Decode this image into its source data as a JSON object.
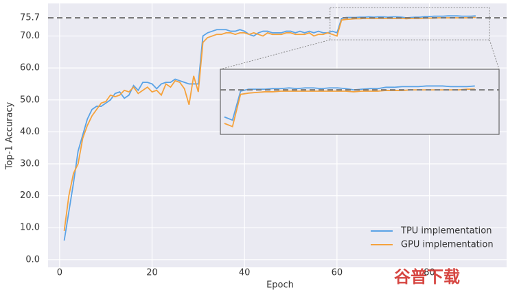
{
  "chart_data": {
    "type": "line",
    "x_label": "Epoch",
    "y_label": "Top-1 Accuracy",
    "x": [
      1,
      2,
      3,
      4,
      5,
      6,
      7,
      8,
      9,
      10,
      11,
      12,
      13,
      14,
      15,
      16,
      17,
      18,
      19,
      20,
      21,
      22,
      23,
      24,
      25,
      26,
      27,
      28,
      29,
      30,
      31,
      32,
      33,
      34,
      35,
      36,
      37,
      38,
      39,
      40,
      41,
      42,
      43,
      44,
      45,
      46,
      47,
      48,
      49,
      50,
      51,
      52,
      53,
      54,
      55,
      56,
      57,
      58,
      59,
      60,
      61,
      62,
      63,
      64,
      65,
      66,
      67,
      68,
      69,
      70,
      71,
      72,
      73,
      74,
      75,
      76,
      77,
      78,
      79,
      80,
      81,
      82,
      83,
      84,
      85,
      86,
      87,
      88,
      89,
      90
    ],
    "series": [
      {
        "name": "TPU implementation",
        "color": "#5aa3e6",
        "values": [
          6,
          15,
          24,
          34,
          39,
          44,
          47,
          48,
          48,
          49,
          50,
          52,
          52.5,
          50.5,
          51.5,
          54.5,
          53,
          55.5,
          55.5,
          55,
          53.5,
          55,
          55.5,
          55.5,
          56.5,
          56,
          55.5,
          55,
          55,
          55,
          70,
          71,
          71.5,
          72,
          72,
          72,
          71.5,
          71.5,
          72,
          71.5,
          70.5,
          70,
          71,
          71.5,
          71.5,
          71,
          71,
          71,
          71.5,
          71.5,
          71,
          71.5,
          71,
          71.5,
          71,
          71.5,
          71,
          71,
          71.5,
          71,
          75.5,
          75.8,
          75.8,
          75.8,
          75.9,
          75.9,
          76,
          75.9,
          76,
          76,
          75.9,
          76,
          76,
          75.9,
          75.7,
          75.8,
          75.9,
          75.9,
          76.1,
          76.1,
          76.2,
          76.2,
          76.2,
          76.3,
          76.3,
          76.3,
          76.2,
          76.2,
          76.2,
          76.3
        ]
      },
      {
        "name": "GPU implementation",
        "color": "#f5a23c",
        "values": [
          9,
          20,
          27,
          30,
          38,
          42,
          45,
          47,
          49,
          49.5,
          51.5,
          51,
          51.5,
          53,
          52.5,
          54,
          52,
          53,
          54,
          52.5,
          53,
          51.5,
          55,
          54,
          56,
          55.5,
          53.5,
          48.5,
          57.5,
          52.5,
          68,
          69.5,
          70,
          70.5,
          70.5,
          71,
          71,
          70.5,
          71,
          71,
          70.5,
          71,
          70.5,
          70,
          71,
          70.5,
          70.5,
          70.5,
          71,
          71,
          70.5,
          70.5,
          70.5,
          71,
          70,
          70.5,
          70.5,
          71,
          70.5,
          70,
          75,
          75.2,
          75.3,
          75.4,
          75.4,
          75.5,
          75.5,
          75.5,
          75.5,
          75.5,
          75.5,
          75.5,
          75.5,
          75.5,
          75.4,
          75.5,
          75.5,
          75.5,
          75.6,
          75.6,
          75.6,
          75.7,
          75.7,
          75.7,
          75.7,
          75.7,
          75.7,
          75.7,
          75.8,
          75.8
        ]
      }
    ],
    "xlim": [
      -2.5,
      96.7
    ],
    "ylim": [
      -2.4,
      80.2
    ],
    "xticks": [
      0,
      20,
      40,
      60,
      80
    ],
    "yticks": [
      {
        "value": 0,
        "label": "0.0"
      },
      {
        "value": 10,
        "label": "10.0"
      },
      {
        "value": 20,
        "label": "20.0"
      },
      {
        "value": 30,
        "label": "30.0"
      },
      {
        "value": 40,
        "label": "40.0"
      },
      {
        "value": 50,
        "label": "50.0"
      },
      {
        "value": 60,
        "label": "60.0"
      },
      {
        "value": 70,
        "label": "70.0"
      },
      75.7
    ],
    "reference_line": 75.7,
    "grid": true,
    "legend": "lower right",
    "inset": {
      "xlim": [
        58.5,
        93
      ],
      "ylim": [
        68.8,
        78.9
      ]
    }
  },
  "watermark": "谷普下载"
}
